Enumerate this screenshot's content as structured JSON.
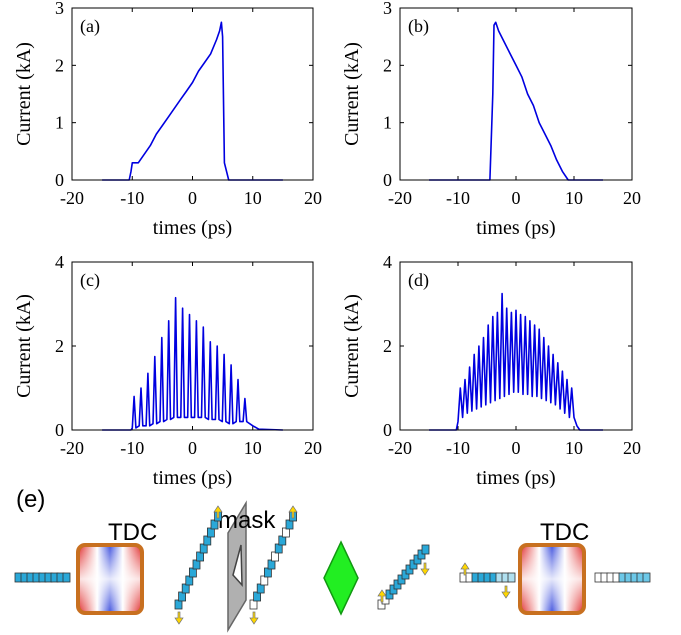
{
  "chart_data": [
    {
      "type": "line",
      "label": "(a)",
      "xlabel": "times (ps)",
      "ylabel": "Current (kA)",
      "color": "#0000e0",
      "x": [
        -15,
        -10.5,
        -10.2,
        -10,
        -9,
        -8,
        -7,
        -6,
        -5,
        -4,
        -3,
        -2,
        -1,
        0,
        1,
        2,
        3,
        4,
        4.5,
        4.8,
        5,
        5.3,
        6,
        15
      ],
      "values": [
        0,
        0,
        0.15,
        0.3,
        0.3,
        0.45,
        0.6,
        0.8,
        0.95,
        1.1,
        1.25,
        1.4,
        1.55,
        1.7,
        1.9,
        2.05,
        2.2,
        2.45,
        2.6,
        2.75,
        2.5,
        0.3,
        0,
        0
      ],
      "xlim": [
        -20,
        20
      ],
      "xticks": [
        -20,
        -10,
        0,
        10,
        20
      ],
      "ylim": [
        0,
        3
      ],
      "yticks": [
        0,
        1,
        2,
        3
      ]
    },
    {
      "type": "line",
      "label": "(b)",
      "xlabel": "times (ps)",
      "ylabel": "Current (kA)",
      "color": "#0000e0",
      "x": [
        -15,
        -4.5,
        -4,
        -3.8,
        -3.5,
        -3,
        -2,
        -1,
        0,
        1,
        2,
        3,
        4,
        5,
        6,
        7,
        8,
        9,
        15
      ],
      "values": [
        0,
        0,
        1.5,
        2.7,
        2.75,
        2.6,
        2.4,
        2.2,
        2.0,
        1.8,
        1.5,
        1.3,
        1.0,
        0.8,
        0.6,
        0.35,
        0.15,
        0,
        0
      ],
      "xlim": [
        -20,
        20
      ],
      "xticks": [
        -20,
        -10,
        0,
        10,
        20
      ],
      "ylim": [
        0,
        3
      ],
      "yticks": [
        0,
        1,
        2,
        3
      ]
    },
    {
      "type": "line",
      "label": "(c)",
      "xlabel": "times (ps)",
      "ylabel": "Current (kA)",
      "color": "#0000e0",
      "x": [
        -15,
        -10.2,
        -10.0,
        -9.7,
        -9.4,
        -8.85,
        -8.55,
        -8.25,
        -7.7,
        -7.4,
        -7.1,
        -6.55,
        -6.25,
        -5.95,
        -5.4,
        -5.1,
        -4.8,
        -4.25,
        -3.95,
        -3.65,
        -3.1,
        -2.8,
        -2.5,
        -1.95,
        -1.65,
        -1.35,
        -0.8,
        -0.5,
        -0.2,
        0.35,
        0.65,
        0.95,
        1.5,
        1.8,
        2.1,
        2.65,
        2.95,
        3.25,
        3.8,
        4.1,
        4.4,
        4.95,
        5.25,
        5.55,
        6.1,
        6.4,
        6.7,
        7.25,
        7.55,
        7.85,
        8.4,
        8.7,
        9.0,
        10.0,
        11,
        15
      ],
      "values": [
        0,
        0,
        0.05,
        0.8,
        0.05,
        0.1,
        1.0,
        0.1,
        0.1,
        1.35,
        0.1,
        0.15,
        1.75,
        0.15,
        0.2,
        2.2,
        0.2,
        0.25,
        2.6,
        0.25,
        0.3,
        3.15,
        0.3,
        0.3,
        2.9,
        0.3,
        0.3,
        2.75,
        0.3,
        0.3,
        2.6,
        0.3,
        0.3,
        2.45,
        0.3,
        0.25,
        2.1,
        0.25,
        0.25,
        2.0,
        0.25,
        0.2,
        1.8,
        0.2,
        0.15,
        1.55,
        0.15,
        0.2,
        1.2,
        0.2,
        0.2,
        0.75,
        0.2,
        0.1,
        0.02,
        0
      ],
      "xlim": [
        -20,
        20
      ],
      "xticks": [
        -20,
        -10,
        0,
        10,
        20
      ],
      "ylim": [
        0,
        4
      ],
      "yticks": [
        0,
        2,
        4
      ]
    },
    {
      "type": "line",
      "label": "(d)",
      "xlabel": "times (ps)",
      "ylabel": "Current (kA)",
      "color": "#0000e0",
      "x": [
        -15,
        -10.3,
        -10.0,
        -9.6,
        -9.2,
        -8.8,
        -8.4,
        -8.0,
        -7.6,
        -7.2,
        -6.8,
        -6.4,
        -6.0,
        -5.6,
        -5.2,
        -4.8,
        -4.4,
        -4.0,
        -3.6,
        -3.2,
        -2.8,
        -2.4,
        -2.0,
        -1.6,
        -1.2,
        -0.8,
        -0.4,
        0.0,
        0.4,
        0.8,
        1.2,
        1.6,
        2.0,
        2.4,
        2.8,
        3.2,
        3.6,
        4.0,
        4.4,
        4.8,
        5.2,
        5.6,
        6.0,
        6.4,
        6.8,
        7.2,
        7.6,
        8.0,
        8.4,
        8.8,
        9.2,
        9.6,
        10.0,
        10.5,
        11,
        15
      ],
      "values": [
        0,
        0,
        0.2,
        1.0,
        0.3,
        1.2,
        0.4,
        1.5,
        0.45,
        1.8,
        0.5,
        2.0,
        0.55,
        2.2,
        0.6,
        2.5,
        0.65,
        2.7,
        0.7,
        2.8,
        0.75,
        3.25,
        0.8,
        2.9,
        0.85,
        2.8,
        0.9,
        2.85,
        0.9,
        2.75,
        0.85,
        2.7,
        0.85,
        2.6,
        0.8,
        2.5,
        0.8,
        2.4,
        0.75,
        2.2,
        0.7,
        2.0,
        0.65,
        1.8,
        0.6,
        1.6,
        0.5,
        1.4,
        0.4,
        1.2,
        0.3,
        1.0,
        0.3,
        0.1,
        0,
        0
      ],
      "xlim": [
        -20,
        20
      ],
      "xticks": [
        -20,
        -10,
        0,
        10,
        20
      ],
      "ylim": [
        0,
        4
      ],
      "yticks": [
        0,
        2,
        4
      ]
    }
  ],
  "diagram": {
    "label": "(e)",
    "components": [
      "TDC",
      "mask",
      "TDC"
    ]
  }
}
